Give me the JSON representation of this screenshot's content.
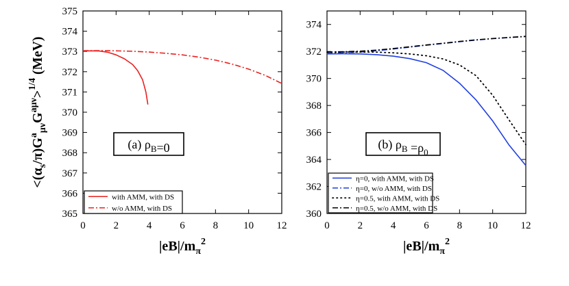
{
  "chart_data": [
    {
      "type": "line",
      "panel": "left",
      "xlabel": "|eB|/m_π^2",
      "ylabel": "<(α_s/π)G^a_μν G^{aμν}>^{1/4} (MeV)",
      "xlim": [
        0,
        12
      ],
      "ylim": [
        365,
        375
      ],
      "xticks": [
        0,
        2,
        4,
        6,
        8,
        10,
        12
      ],
      "yticks": [
        365,
        366,
        367,
        368,
        369,
        370,
        371,
        372,
        373,
        374,
        375
      ],
      "grid": false,
      "legend_position": "bottom-left",
      "annotation": "(a) ρ_B=0",
      "series": [
        {
          "name": "with AMM, with DS",
          "color": "#e8201e",
          "style": "solid",
          "x": [
            0,
            0.5,
            1.0,
            1.5,
            2.0,
            2.5,
            3.0,
            3.3,
            3.6,
            3.8,
            3.92
          ],
          "y": [
            373.02,
            373.03,
            373.02,
            372.96,
            372.83,
            372.64,
            372.35,
            372.05,
            371.6,
            371.0,
            370.38
          ]
        },
        {
          "name": "w/o AMM, with DS",
          "color": "#e8201e",
          "style": "dashdot",
          "x": [
            0,
            1,
            2,
            3,
            4,
            5,
            6,
            7,
            8,
            9,
            10,
            11,
            12
          ],
          "y": [
            373.04,
            373.04,
            373.03,
            373.01,
            372.97,
            372.91,
            372.83,
            372.72,
            372.57,
            372.38,
            372.13,
            371.82,
            371.42
          ]
        }
      ]
    },
    {
      "type": "line",
      "panel": "right",
      "xlabel": "|eB|/m_π^2",
      "ylabel": "",
      "xlim": [
        0,
        12
      ],
      "ylim": [
        360,
        375
      ],
      "xticks": [
        0,
        2,
        4,
        6,
        8,
        10,
        12
      ],
      "yticks": [
        360,
        362,
        364,
        366,
        368,
        370,
        372,
        374
      ],
      "grid": false,
      "legend_position": "bottom-left",
      "annotation": "(b) ρ_B =ρ_0",
      "series": [
        {
          "name": "η=0, with AMM, with DS",
          "color": "#1f3fe0",
          "style": "solid",
          "x": [
            0,
            1,
            2,
            3,
            4,
            5,
            6,
            7,
            8,
            9,
            10,
            11,
            12
          ],
          "y": [
            371.82,
            371.83,
            371.82,
            371.76,
            371.65,
            371.47,
            371.17,
            370.6,
            369.65,
            368.4,
            366.85,
            365.05,
            363.55
          ]
        },
        {
          "name": "η=0, w/o AMM, with DS",
          "color": "#1f3fe0",
          "style": "dashdot",
          "x": [
            0,
            1,
            2,
            3,
            4,
            5,
            6,
            7,
            8,
            9,
            10,
            11,
            12
          ],
          "y": [
            371.88,
            371.9,
            371.95,
            372.05,
            372.18,
            372.32,
            372.46,
            372.59,
            372.72,
            372.84,
            372.95,
            373.03,
            373.1
          ]
        },
        {
          "name": "η=0.5, with AMM, with DS",
          "color": "#000000",
          "style": "dotted",
          "x": [
            0,
            1,
            2,
            3,
            4,
            5,
            6,
            7,
            8,
            9,
            10,
            11,
            11.5,
            12
          ],
          "y": [
            371.95,
            371.96,
            371.96,
            371.95,
            371.9,
            371.82,
            371.68,
            371.45,
            371.0,
            370.2,
            368.75,
            366.9,
            366.0,
            365.1
          ]
        },
        {
          "name": "η=0.5, w/o AMM, with DS",
          "color": "#000000",
          "style": "dashdot",
          "x": [
            0,
            1,
            2,
            3,
            4,
            5,
            6,
            7,
            8,
            9,
            10,
            11,
            12
          ],
          "y": [
            371.96,
            371.98,
            372.02,
            372.1,
            372.22,
            372.35,
            372.48,
            372.61,
            372.74,
            372.86,
            372.96,
            373.04,
            373.12
          ]
        }
      ]
    }
  ]
}
